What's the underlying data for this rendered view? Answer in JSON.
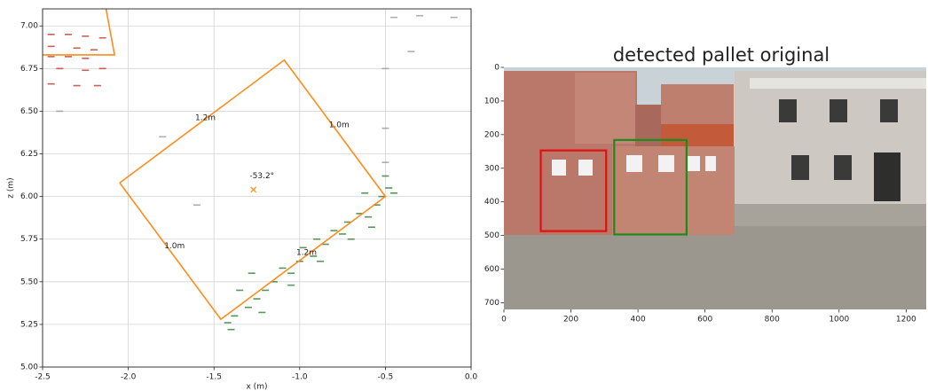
{
  "chart_data": [
    {
      "type": "scatter",
      "xlabel": "x (m)",
      "ylabel": "z (m)",
      "xlim": [
        -2.5,
        0.0
      ],
      "ylim": [
        5.0,
        7.1
      ],
      "xticks": [
        -2.5,
        {
          "value": -2.0,
          "label": "-2.0"
        },
        -1.5,
        {
          "value": -1.0,
          "label": "-1.0"
        },
        -0.5,
        {
          "value": 0.0,
          "label": "0.0"
        }
      ],
      "yticks": [
        {
          "value": 5.0,
          "label": "5.00"
        },
        5.25,
        {
          "value": 5.5,
          "label": "5.50"
        },
        5.75,
        {
          "value": 6.0,
          "label": "6.00"
        },
        6.25,
        {
          "value": 6.5,
          "label": "6.50"
        },
        6.75,
        {
          "value": 7.0,
          "label": "7.00"
        }
      ],
      "grid": true,
      "series": [
        {
          "color": "#2e7d32",
          "x": [
            -1.4,
            -1.38,
            -1.3,
            -1.25,
            -1.35,
            -1.2,
            -1.15,
            -1.28,
            -1.1,
            -1.05,
            -1.0,
            -0.98,
            -0.92,
            -0.9,
            -0.85,
            -0.8,
            -0.75,
            -0.72,
            -0.65,
            -0.6,
            -0.55,
            -0.52,
            -0.48,
            -0.5,
            -0.45,
            -1.22,
            -1.05,
            -0.88,
            -0.7,
            -0.58,
            -1.42,
            -0.62
          ],
          "values": [
            5.22,
            5.3,
            5.35,
            5.4,
            5.45,
            5.45,
            5.5,
            5.55,
            5.58,
            5.55,
            5.62,
            5.7,
            5.65,
            5.75,
            5.72,
            5.8,
            5.78,
            5.85,
            5.9,
            5.88,
            5.95,
            6.0,
            6.05,
            6.12,
            6.02,
            5.32,
            5.48,
            5.62,
            5.75,
            5.82,
            5.26,
            6.02
          ]
        },
        {
          "color": "#c0392b",
          "x": [
            -2.45,
            -2.35,
            -2.25,
            -2.15,
            -2.45,
            -2.3,
            -2.2,
            -2.45,
            -2.35,
            -2.25,
            -2.4,
            -2.25,
            -2.15,
            -2.45,
            -2.3,
            -2.18
          ],
          "values": [
            6.95,
            6.95,
            6.94,
            6.93,
            6.88,
            6.87,
            6.86,
            6.82,
            6.82,
            6.81,
            6.75,
            6.74,
            6.75,
            6.66,
            6.65,
            6.65
          ]
        },
        {
          "color": "#9a9a9a",
          "x": [
            -0.45,
            -0.3,
            -0.1,
            -0.35,
            -0.5,
            -0.5,
            -1.8,
            -1.6,
            -0.5,
            -2.4
          ],
          "values": [
            7.05,
            7.06,
            7.05,
            6.85,
            6.4,
            6.2,
            6.35,
            5.95,
            6.75,
            6.5
          ]
        }
      ],
      "shapes": [
        {
          "color": "#ff8c1a",
          "x": [
            -2.05,
            -1.09,
            -0.5,
            -1.46,
            -2.05
          ],
          "values": [
            6.08,
            6.8,
            6.0,
            5.28,
            6.08
          ]
        },
        {
          "color": "#ff8c1a",
          "x": [
            -2.13,
            -2.08,
            -2.5
          ],
          "values": [
            7.1,
            6.83,
            6.83
          ]
        }
      ],
      "center": {
        "color": "#ff8c1a",
        "x": -1.27,
        "value": 6.04
      },
      "annotations": [
        {
          "text": "1.2m",
          "x": -1.55,
          "y": 6.46
        },
        {
          "text": "1.0m",
          "x": -0.77,
          "y": 6.42
        },
        {
          "text": "-53.2°",
          "x": -1.22,
          "y": 6.12
        },
        {
          "text": "1.0m",
          "x": -1.73,
          "y": 5.71
        },
        {
          "text": "1.2m",
          "x": -0.96,
          "y": 5.67
        }
      ]
    },
    {
      "type": "image",
      "title": "detected pallet original",
      "xlim": [
        0,
        1260
      ],
      "ylim": [
        720,
        0
      ],
      "xticks": [
        0,
        200,
        400,
        600,
        800,
        1000,
        1200
      ],
      "yticks": [
        0,
        100,
        200,
        300,
        400,
        500,
        600,
        700
      ],
      "boxes": [
        {
          "color": "#e01010",
          "x": [
            110,
            305
          ],
          "y": [
            247,
            487
          ]
        },
        {
          "color": "#1d8a1d",
          "x": [
            329,
            545
          ],
          "y": [
            216,
            497
          ]
        }
      ]
    }
  ]
}
